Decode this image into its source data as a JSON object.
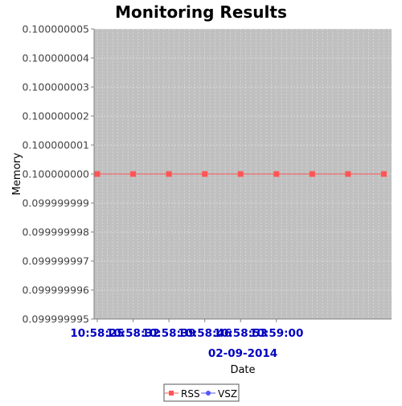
{
  "chart_data": {
    "type": "line",
    "title": "Monitoring Results",
    "xlabel": "Date",
    "ylabel": "Memory",
    "date_label": "02-09-2014",
    "ylim": [
      0.099999995,
      0.100000005
    ],
    "yticks": [
      "0.100000005",
      "0.100000004",
      "0.100000003",
      "0.100000002",
      "0.100000001",
      "0.100000000",
      "0.099999999",
      "0.099999998",
      "0.099999997",
      "0.099999996",
      "0.099999995"
    ],
    "xticks": [
      "10:58:25",
      "10:58:32",
      "10:58:39",
      "10:58:46",
      "10:58:53",
      "10:59:00"
    ],
    "x_range_seconds": [
      0,
      57.5
    ],
    "xtick_seconds": [
      0,
      7,
      14,
      21,
      28,
      35
    ],
    "grid": true,
    "legend_position": "bottom",
    "series": [
      {
        "name": "RSS",
        "color": "#ff5555",
        "marker": "square",
        "x_seconds": [
          0,
          7,
          14,
          21,
          28,
          35,
          42,
          49,
          56
        ],
        "values": [
          0.1,
          0.1,
          0.1,
          0.1,
          0.1,
          0.1,
          0.1,
          0.1,
          0.1
        ]
      },
      {
        "name": "VSZ",
        "color": "#5555ff",
        "marker": "circle",
        "x_seconds": [],
        "values": []
      }
    ]
  },
  "colors": {
    "plot_background": "#c0c0c0",
    "grid": "#e2e2e2",
    "tick_label_x": "#0000c0"
  }
}
